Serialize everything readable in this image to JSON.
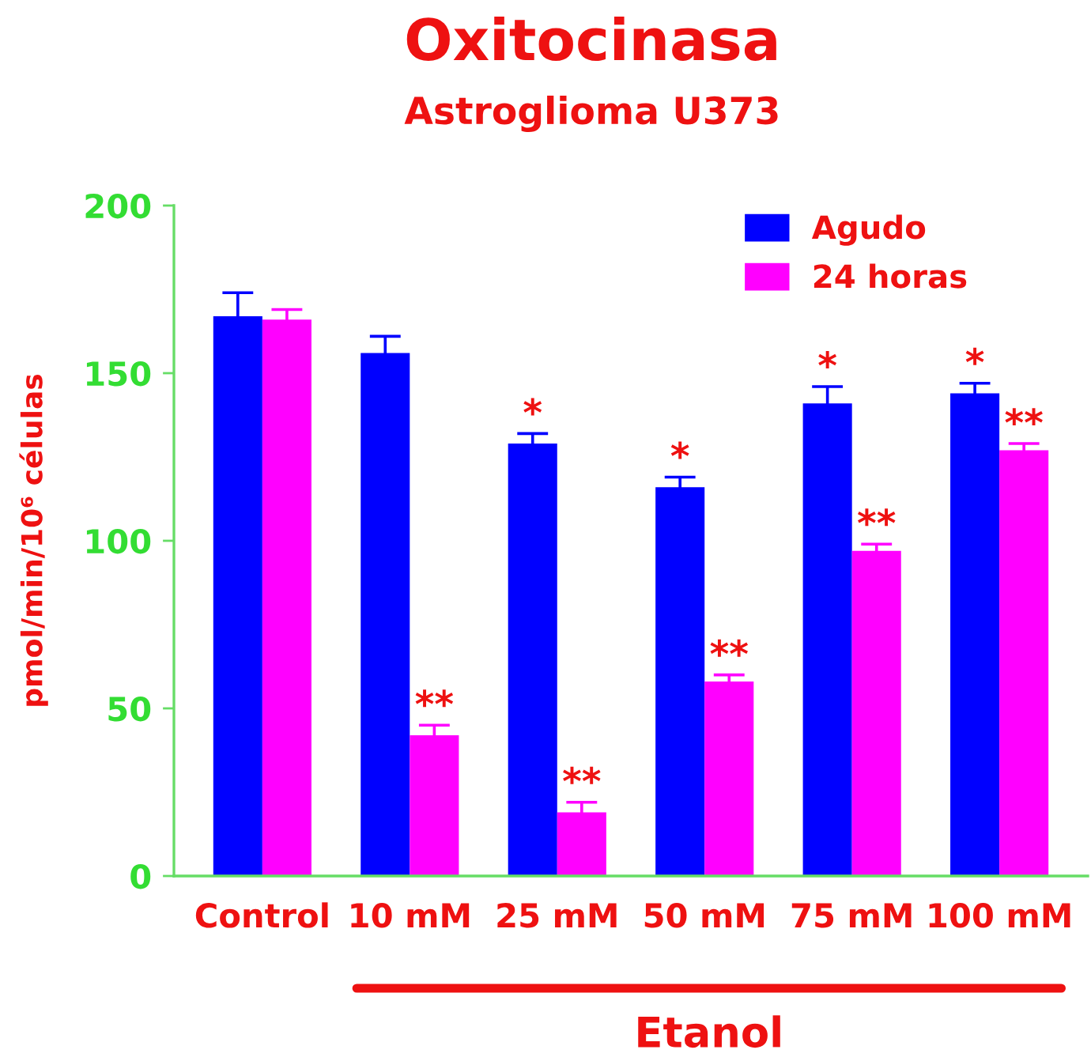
{
  "chart_data": {
    "type": "bar",
    "title": "Oxitocinasa",
    "subtitle": "Astroglioma U373",
    "ylabel": "pmol/min/10⁶ células",
    "categories": [
      "Control",
      "10 mM",
      "25 mM",
      "50 mM",
      "75 mM",
      "100 mM"
    ],
    "series": [
      {
        "name": "Agudo",
        "color": "#0000ff",
        "values": [
          167,
          156,
          129,
          116,
          141,
          144
        ],
        "errors": [
          7,
          5,
          3,
          3,
          5,
          3
        ],
        "value_labels": [
          null,
          null,
          "*",
          "*",
          "*",
          "*"
        ]
      },
      {
        "name": "24 horas",
        "color": "#ff00ff",
        "values": [
          166,
          42,
          19,
          58,
          97,
          127
        ],
        "errors": [
          3,
          3,
          3,
          2,
          2,
          2
        ],
        "value_labels": [
          null,
          "**",
          "**",
          "**",
          "**",
          "**"
        ]
      }
    ],
    "ylim": [
      0,
      200
    ],
    "yticks": [
      0,
      50,
      100,
      150,
      200
    ],
    "legend": "top right",
    "annotations": [
      "Etanol"
    ]
  }
}
